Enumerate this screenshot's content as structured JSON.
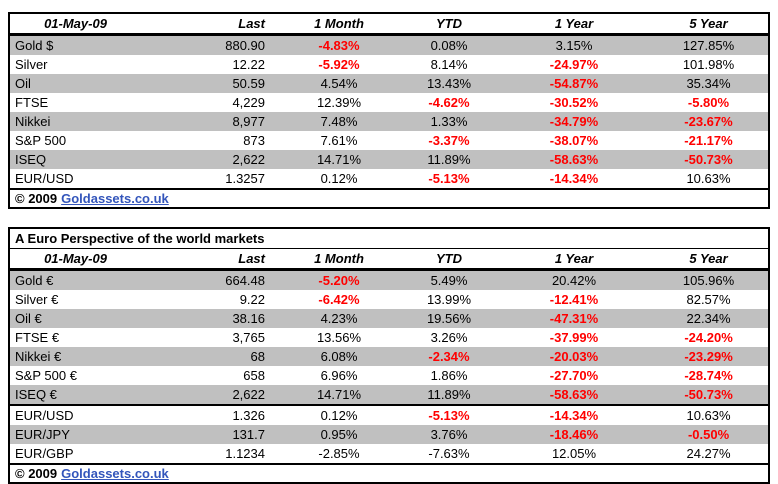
{
  "colors": {
    "stripe": "#C0C0C0",
    "negative_text": "#FF0000",
    "link_text": "#3355BB",
    "border": "#000000"
  },
  "usd_table": {
    "header": {
      "date_label": "01-May-09",
      "columns": [
        "Last",
        "1 Month",
        "YTD",
        "1 Year",
        "5 Year"
      ]
    },
    "rows": [
      {
        "label": "Gold $",
        "last": "880.90",
        "pct": [
          {
            "v": "-4.83%",
            "red": true
          },
          {
            "v": "0.08%",
            "red": false
          },
          {
            "v": "3.15%",
            "red": false
          },
          {
            "v": "127.85%",
            "red": false
          }
        ]
      },
      {
        "label": "Silver",
        "last": "12.22",
        "pct": [
          {
            "v": "-5.92%",
            "red": true
          },
          {
            "v": "8.14%",
            "red": false
          },
          {
            "v": "-24.97%",
            "red": true
          },
          {
            "v": "101.98%",
            "red": false
          }
        ]
      },
      {
        "label": "Oil",
        "last": "50.59",
        "pct": [
          {
            "v": "4.54%",
            "red": false
          },
          {
            "v": "13.43%",
            "red": false
          },
          {
            "v": "-54.87%",
            "red": true
          },
          {
            "v": "35.34%",
            "red": false
          }
        ]
      },
      {
        "label": "FTSE",
        "last": "4,229",
        "pct": [
          {
            "v": "12.39%",
            "red": false
          },
          {
            "v": "-4.62%",
            "red": true
          },
          {
            "v": "-30.52%",
            "red": true
          },
          {
            "v": "-5.80%",
            "red": true
          }
        ]
      },
      {
        "label": "Nikkei",
        "last": "8,977",
        "pct": [
          {
            "v": "7.48%",
            "red": false
          },
          {
            "v": "1.33%",
            "red": false
          },
          {
            "v": "-34.79%",
            "red": true
          },
          {
            "v": "-23.67%",
            "red": true
          }
        ]
      },
      {
        "label": "S&P 500",
        "last": "873",
        "pct": [
          {
            "v": "7.61%",
            "red": false
          },
          {
            "v": "-3.37%",
            "red": true
          },
          {
            "v": "-38.07%",
            "red": true
          },
          {
            "v": "-21.17%",
            "red": true
          }
        ]
      },
      {
        "label": "ISEQ",
        "last": "2,622",
        "pct": [
          {
            "v": "14.71%",
            "red": false
          },
          {
            "v": "11.89%",
            "red": false
          },
          {
            "v": "-58.63%",
            "red": true
          },
          {
            "v": "-50.73%",
            "red": true
          }
        ]
      },
      {
        "label": "EUR/USD",
        "last": "1.3257",
        "pct": [
          {
            "v": "0.12%",
            "red": false
          },
          {
            "v": "-5.13%",
            "red": true
          },
          {
            "v": "-14.34%",
            "red": true
          },
          {
            "v": "10.63%",
            "red": false
          }
        ]
      }
    ],
    "footer": {
      "copyright": "© 2009",
      "link": "Goldassets.co.uk"
    }
  },
  "euro_table": {
    "title": "A Euro Perspective of the world markets",
    "header": {
      "date_label": "01-May-09",
      "columns": [
        "Last",
        "1 Month",
        "YTD",
        "1 Year",
        "5 Year"
      ]
    },
    "rows": [
      {
        "label": "Gold €",
        "last": "664.48",
        "pct": [
          {
            "v": "-5.20%",
            "red": true
          },
          {
            "v": "5.49%",
            "red": false
          },
          {
            "v": "20.42%",
            "red": false
          },
          {
            "v": "105.96%",
            "red": false
          }
        ]
      },
      {
        "label": "Silver €",
        "last": "9.22",
        "pct": [
          {
            "v": "-6.42%",
            "red": true
          },
          {
            "v": "13.99%",
            "red": false
          },
          {
            "v": "-12.41%",
            "red": true
          },
          {
            "v": "82.57%",
            "red": false
          }
        ]
      },
      {
        "label": "Oil €",
        "last": "38.16",
        "pct": [
          {
            "v": "4.23%",
            "red": false
          },
          {
            "v": "19.56%",
            "red": false
          },
          {
            "v": "-47.31%",
            "red": true
          },
          {
            "v": "22.34%",
            "red": false
          }
        ]
      },
      {
        "label": "FTSE €",
        "last": "3,765",
        "pct": [
          {
            "v": "13.56%",
            "red": false
          },
          {
            "v": "3.26%",
            "red": false
          },
          {
            "v": "-37.99%",
            "red": true
          },
          {
            "v": "-24.20%",
            "red": true
          }
        ]
      },
      {
        "label": "Nikkei €",
        "last": "68",
        "pct": [
          {
            "v": "6.08%",
            "red": false
          },
          {
            "v": "-2.34%",
            "red": true
          },
          {
            "v": "-20.03%",
            "red": true
          },
          {
            "v": "-23.29%",
            "red": true
          }
        ]
      },
      {
        "label": "S&P 500 €",
        "last": "658",
        "pct": [
          {
            "v": "6.96%",
            "red": false
          },
          {
            "v": "1.86%",
            "red": false
          },
          {
            "v": "-27.70%",
            "red": true
          },
          {
            "v": "-28.74%",
            "red": true
          }
        ]
      },
      {
        "label": "ISEQ €",
        "last": "2,622",
        "pct": [
          {
            "v": "14.71%",
            "red": false
          },
          {
            "v": "11.89%",
            "red": false
          },
          {
            "v": "-58.63%",
            "red": true
          },
          {
            "v": "-50.73%",
            "red": true
          }
        ]
      },
      {
        "label": "EUR/USD",
        "last": "1.326",
        "group_start": true,
        "pct": [
          {
            "v": "0.12%",
            "red": false
          },
          {
            "v": "-5.13%",
            "red": true
          },
          {
            "v": "-14.34%",
            "red": true
          },
          {
            "v": "10.63%",
            "red": false
          }
        ]
      },
      {
        "label": "EUR/JPY",
        "last": "131.7",
        "pct": [
          {
            "v": "0.95%",
            "red": false
          },
          {
            "v": "3.76%",
            "red": false
          },
          {
            "v": "-18.46%",
            "red": true
          },
          {
            "v": "-0.50%",
            "red": true
          }
        ]
      },
      {
        "label": "EUR/GBP",
        "last": "1.1234",
        "pct": [
          {
            "v": "-2.85%",
            "red": false
          },
          {
            "v": "-7.63%",
            "red": false
          },
          {
            "v": "12.05%",
            "red": false
          },
          {
            "v": "24.27%",
            "red": false
          }
        ]
      }
    ],
    "footer": {
      "copyright": "© 2009",
      "link": "Goldassets.co.uk"
    }
  }
}
